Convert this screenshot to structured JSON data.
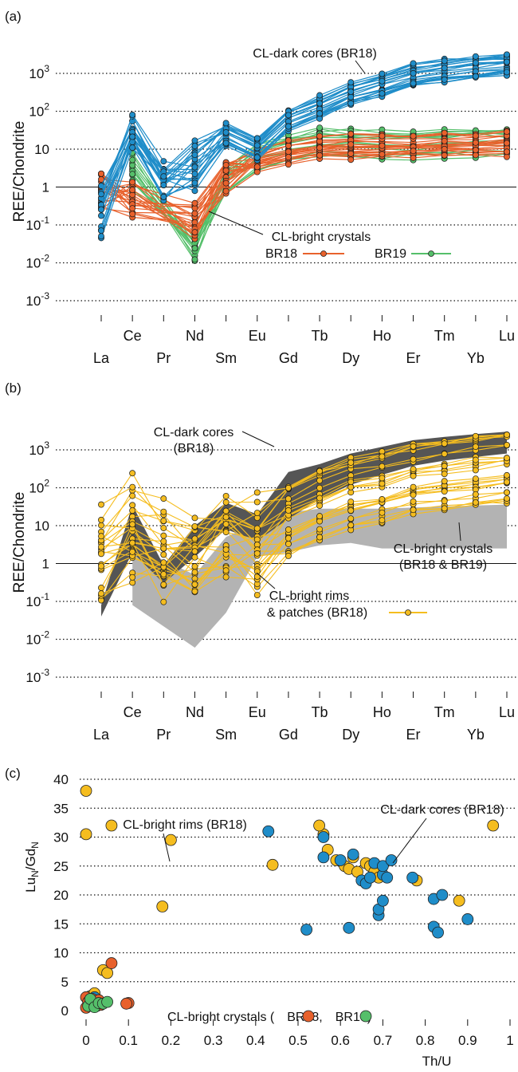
{
  "colors": {
    "cores": "#1f8dc9",
    "br18": "#e8612c",
    "br19": "#55bf6a",
    "rims": "#f5bd1f",
    "dark_band": "#555555",
    "light_band": "#b3b3b3"
  },
  "ree_labels": [
    "La",
    "Ce",
    "Pr",
    "Nd",
    "Sm",
    "Eu",
    "Gd",
    "Tb",
    "Dy",
    "Ho",
    "Er",
    "Tm",
    "Yb",
    "Lu"
  ],
  "chart_data": [
    {
      "panel": "(a)",
      "type": "line",
      "ylabel": "REE/Chondrite",
      "yscale": "log",
      "ylim": [
        0.001,
        1000
      ],
      "ytick_labels": [
        {
          "b": "10",
          "e": "3"
        },
        {
          "b": "10",
          "e": "2"
        },
        {
          "b": "10",
          "e": ""
        },
        {
          "b": "1",
          "e": ""
        },
        {
          "b": "10",
          "e": "-1"
        },
        {
          "b": "10",
          "e": "-2"
        },
        {
          "b": "10",
          "e": "-3"
        }
      ],
      "annotations": {
        "cores": "CL-dark cores (BR18)",
        "bright": "CL-bright crystals",
        "br18": "BR18",
        "br19": "BR19"
      },
      "series": [
        {
          "name": "CL-dark cores (BR18)",
          "values": [
            0.2,
            25,
            1.2,
            4,
            25,
            10,
            60,
            130,
            300,
            500,
            900,
            1200,
            1500,
            1800
          ]
        },
        {
          "name": "BR18",
          "values": [
            0.8,
            0.5,
            null,
            0.12,
            2,
            5,
            8,
            11,
            12,
            12,
            12,
            13,
            13,
            14
          ]
        },
        {
          "name": "BR19",
          "values": [
            null,
            3,
            null,
            0.03,
            1.5,
            6,
            10,
            15,
            14,
            13,
            13,
            14,
            15,
            16
          ]
        }
      ]
    },
    {
      "panel": "(b)",
      "type": "line",
      "ylabel": "REE/Chondrite",
      "yscale": "log",
      "ylim": [
        0.001,
        1000
      ],
      "ytick_labels": [
        {
          "b": "10",
          "e": "3"
        },
        {
          "b": "10",
          "e": "2"
        },
        {
          "b": "10",
          "e": ""
        },
        {
          "b": "1",
          "e": ""
        },
        {
          "b": "10",
          "e": "-1"
        },
        {
          "b": "10",
          "e": "-2"
        },
        {
          "b": "10",
          "e": "-3"
        }
      ],
      "annotations": {
        "cores1": "CL-dark cores",
        "cores2": "(BR18)",
        "bright1": "CL-bright crystals",
        "bright2": "(BR18 & BR19)",
        "rims1": "CL-bright rims",
        "rims2": "& patches (BR18)"
      },
      "series": [
        {
          "name": "CL-bright rims & patches (BR18)",
          "values": [
            2,
            10,
            2,
            2,
            5,
            4,
            15,
            40,
            80,
            120,
            200,
            260,
            320,
            400
          ]
        }
      ]
    },
    {
      "panel": "(c)",
      "type": "scatter",
      "xlabel": "Th/U",
      "ylabel": "Lu",
      "ylabel_sub1": "N",
      "ylabel_mid": "/Gd",
      "ylabel_sub2": "N",
      "xlim": [
        0,
        1
      ],
      "ylim": [
        0,
        40
      ],
      "xticks": [
        "0",
        "0.1",
        "0.2",
        "0.3",
        "0.4",
        "0.5",
        "0.6",
        "0.7",
        "0.8",
        "0.9",
        "1"
      ],
      "yticks": [
        "0",
        "5",
        "10",
        "15",
        "20",
        "25",
        "30",
        "35",
        "40"
      ],
      "annotations": {
        "rims": "CL-bright rims (BR18)",
        "cores": "CL-dark cores (BR18)",
        "crystals_prefix": "CL-bright crystals (",
        "crystals_a": "BR18,",
        "crystals_b": "BR19)"
      },
      "series": [
        {
          "name": "CL-bright rims (BR18)",
          "x": [
            0.0,
            0.0,
            0.06,
            0.2,
            0.18,
            0.44,
            0.56,
            0.55,
            0.57,
            0.59,
            0.61,
            0.62,
            0.63,
            0.64,
            0.66,
            0.67,
            0.68,
            0.69,
            0.78,
            0.88,
            0.96,
            0.04,
            0.05,
            0.01,
            0.02
          ],
          "y": [
            38,
            30.5,
            32,
            29.5,
            18,
            25.2,
            30.5,
            32,
            27.8,
            26,
            25,
            24.5,
            26.5,
            24,
            25.5,
            25,
            24,
            23,
            22.5,
            19,
            32,
            7,
            6.5,
            2.5,
            3
          ]
        },
        {
          "name": "CL-dark cores (BR18)",
          "x": [
            0.43,
            0.52,
            0.56,
            0.56,
            0.6,
            0.62,
            0.63,
            0.65,
            0.66,
            0.67,
            0.68,
            0.69,
            0.69,
            0.7,
            0.7,
            0.7,
            0.71,
            0.72,
            0.77,
            0.82,
            0.82,
            0.83,
            0.84,
            0.9,
            0.02
          ],
          "y": [
            31,
            14,
            30,
            26.5,
            26,
            14.3,
            27,
            22.5,
            22,
            23,
            25.5,
            16.5,
            17.5,
            19,
            23.5,
            25,
            23,
            26,
            23,
            19.3,
            14.5,
            13.5,
            20,
            15.8,
            2.3
          ]
        },
        {
          "name": "BR18",
          "x": [
            0.0,
            0.005,
            0.01,
            0.015,
            0.02,
            0.025,
            0.03,
            0.035,
            0.06,
            0.1,
            0.095,
            0.0
          ],
          "y": [
            2.3,
            1.5,
            1.0,
            2.0,
            1.3,
            0.8,
            1.8,
            1.0,
            8.2,
            1.3,
            1.2,
            0.5
          ]
        },
        {
          "name": "BR19",
          "x": [
            0.005,
            0.01,
            0.02,
            0.03,
            0.04,
            0.05
          ],
          "y": [
            0.8,
            2.0,
            0.6,
            1.3,
            1.2,
            1.5
          ]
        }
      ]
    }
  ]
}
